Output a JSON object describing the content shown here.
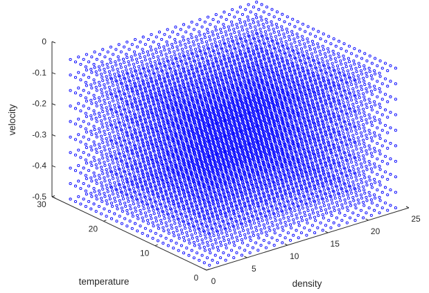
{
  "chart_data": {
    "type": "scatter3d",
    "title": "",
    "xlabel": "density",
    "ylabel": "temperature",
    "zlabel": "velocity",
    "x_ticks": [
      "0",
      "5",
      "10",
      "15",
      "20",
      "25"
    ],
    "y_ticks": [
      "0",
      "10",
      "20",
      "30"
    ],
    "z_ticks": [
      "0",
      "-0.1",
      "-0.2",
      "-0.3",
      "-0.4",
      "-0.5"
    ],
    "xlim": [
      0,
      25
    ],
    "ylim": [
      0,
      30
    ],
    "zlim": [
      -0.5,
      0
    ],
    "grid": false,
    "marker": "circle",
    "marker_color": "#0000ff",
    "series": [
      {
        "x": {
          "start": 1,
          "end": 24,
          "step": 1
        },
        "y": {
          "start": 1,
          "end": 28,
          "step": 1
        },
        "z": {
          "start": -0.5,
          "end": -0.05,
          "step": 0.05
        }
      }
    ]
  }
}
